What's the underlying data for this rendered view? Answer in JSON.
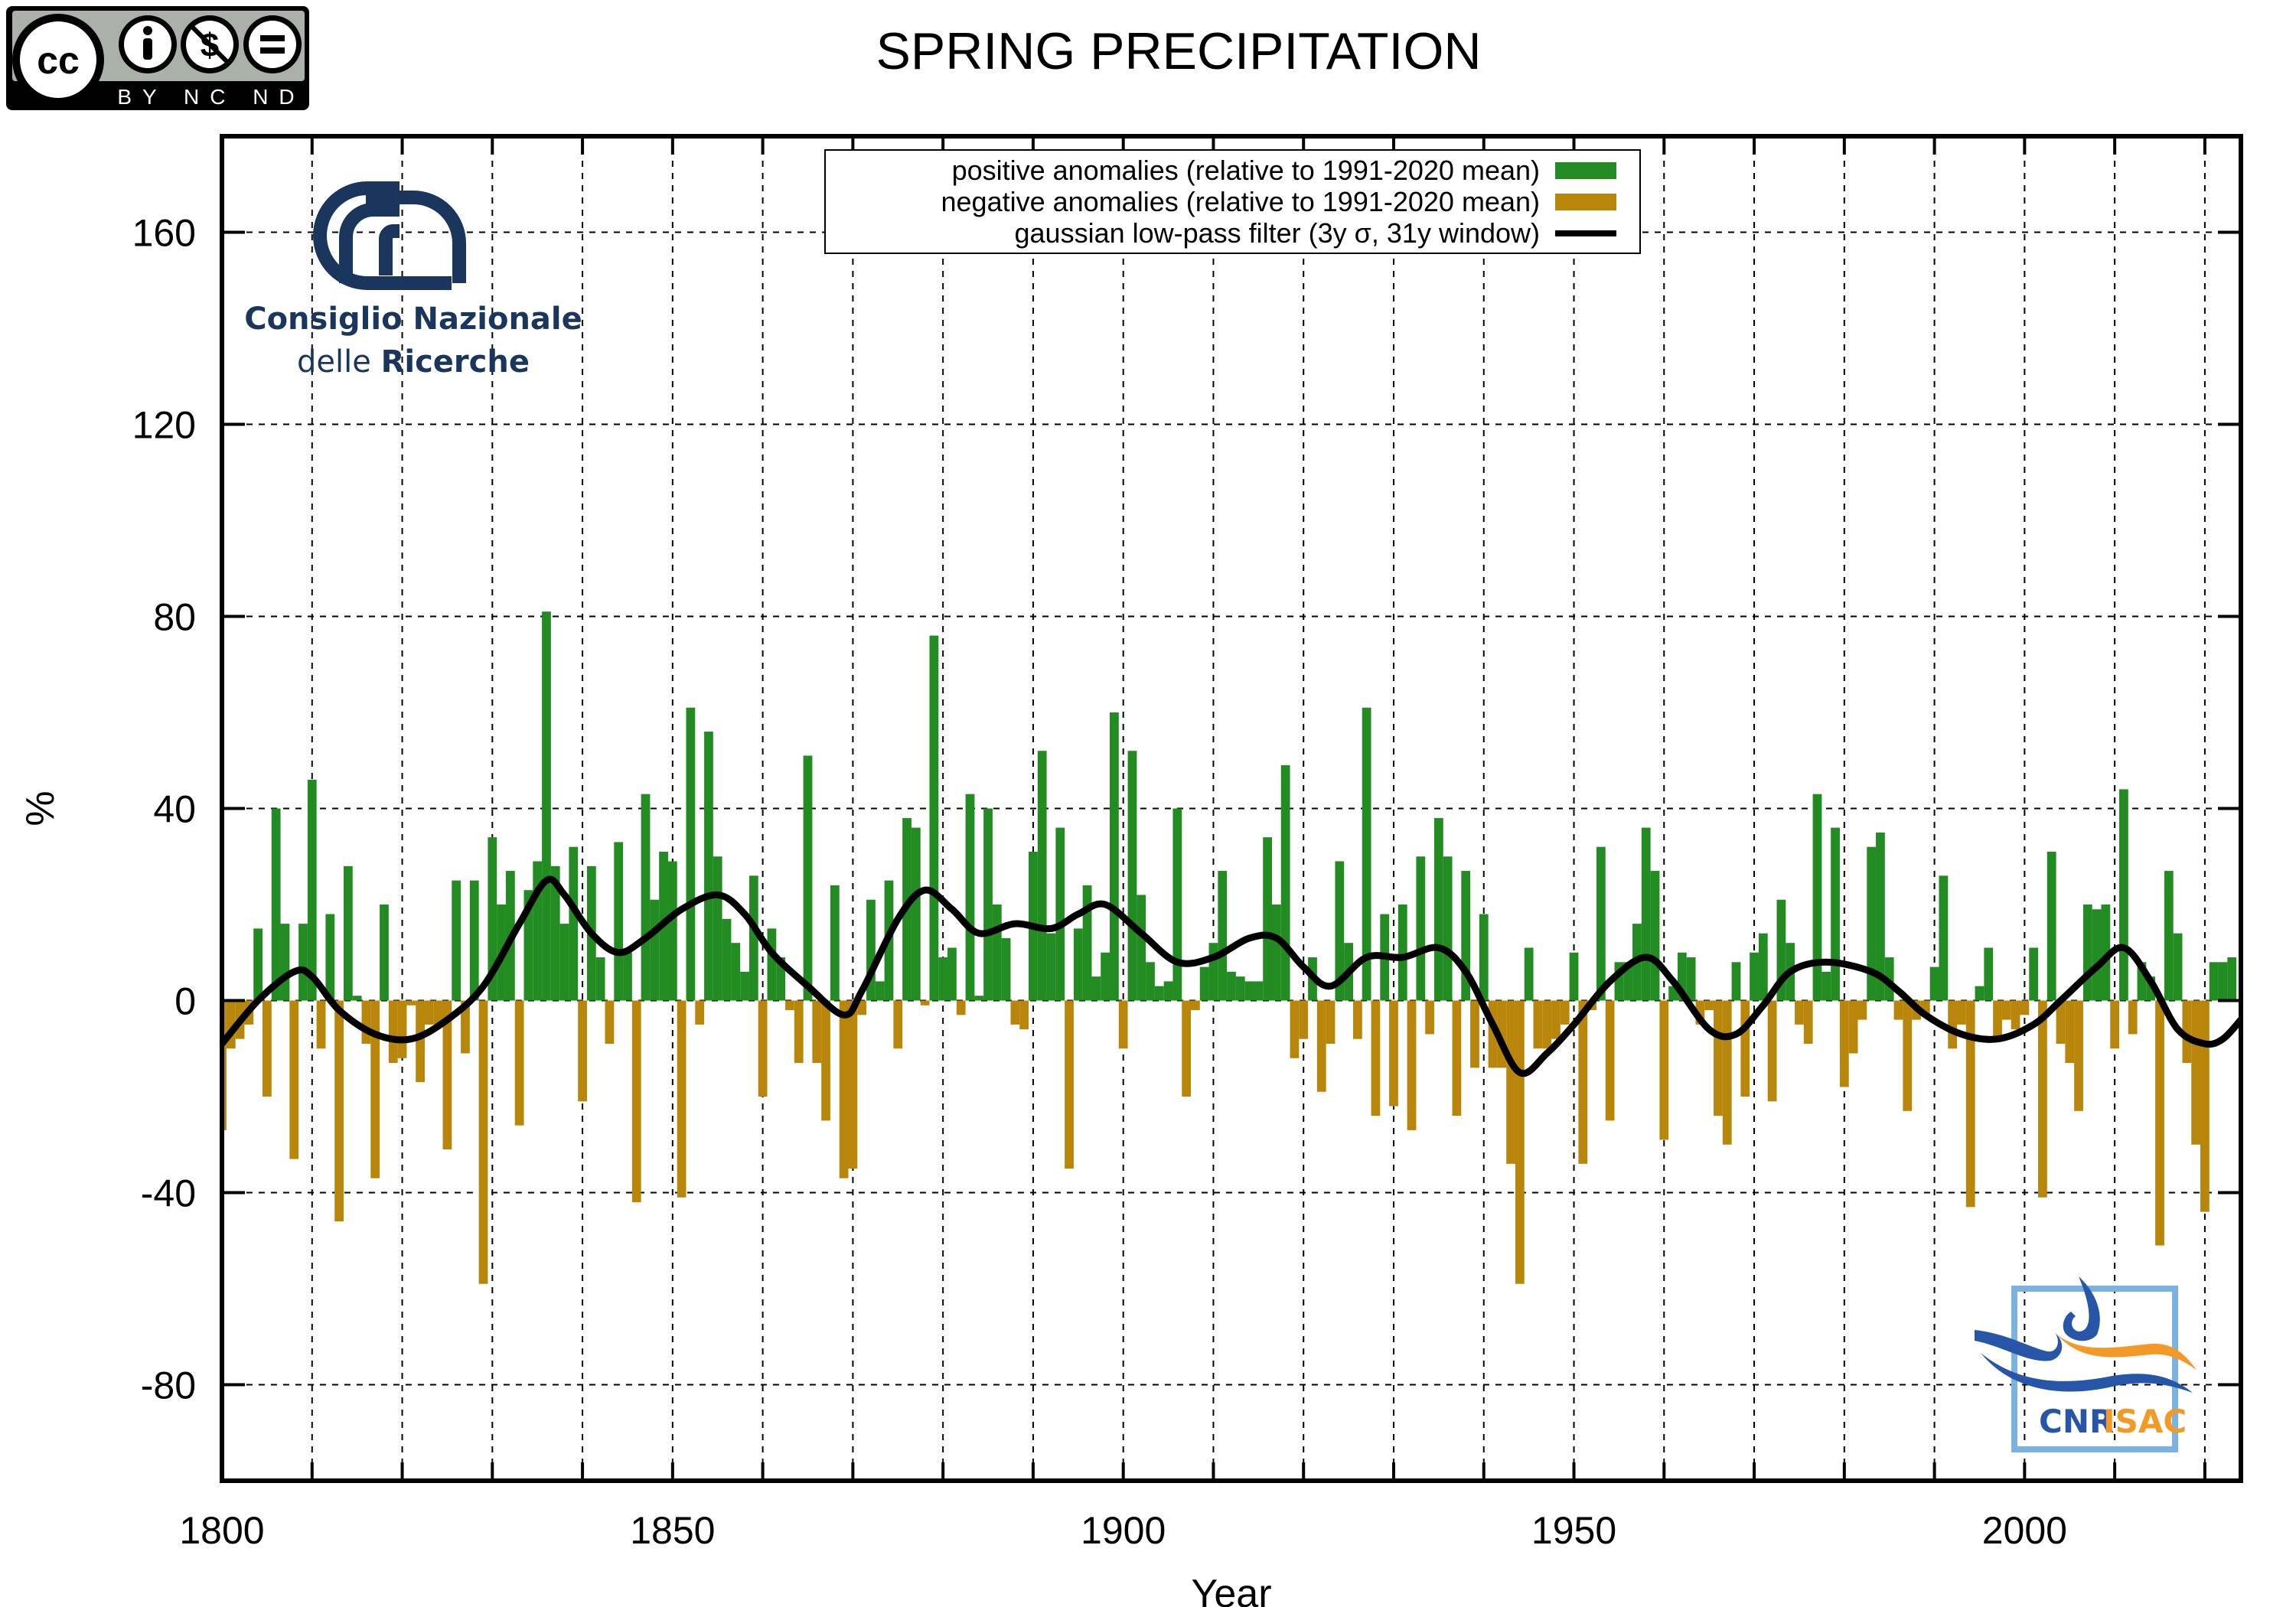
{
  "chart_data": {
    "type": "bar",
    "title": "SPRING PRECIPITATION",
    "xlabel": "Year",
    "ylabel": "%",
    "xlim": [
      1800,
      2024
    ],
    "ylim": [
      -100,
      180
    ],
    "xticks": [
      1800,
      1850,
      1900,
      1950,
      2000
    ],
    "yticks": [
      -80,
      -40,
      0,
      40,
      80,
      120,
      160
    ],
    "grid": true,
    "legend_position": "top-center",
    "legend": [
      {
        "label": "positive anomalies (relative to 1991-2020 mean)",
        "color": "#228b22"
      },
      {
        "label": "negative anomalies (relative to 1991-2020 mean)",
        "color": "#b8860b"
      },
      {
        "label": "gaussian low-pass filter (3y σ, 31y window)",
        "color": "#000000"
      }
    ],
    "start_year": 1800,
    "values": [
      -27,
      -10,
      -8,
      -5,
      15,
      -20,
      40,
      16,
      -33,
      16,
      46,
      -10,
      18,
      -46,
      28,
      1,
      -9,
      -37,
      20,
      -13,
      -12,
      -1,
      -17,
      -5,
      -5,
      -31,
      25,
      -11,
      25,
      -59,
      34,
      20,
      27,
      -26,
      23,
      29,
      81,
      28,
      16,
      32,
      -21,
      28,
      9,
      -9,
      33,
      10,
      -42,
      43,
      21,
      31,
      29,
      -41,
      61,
      -5,
      56,
      30,
      17,
      12,
      6,
      26,
      -20,
      15,
      9,
      -2,
      -13,
      51,
      -13,
      -25,
      24,
      -37,
      -35,
      -3,
      21,
      4,
      25,
      -10,
      38,
      36,
      -1,
      76,
      9,
      11,
      -3,
      43,
      1,
      40,
      20,
      13,
      -5,
      -6,
      31,
      52,
      14,
      36,
      -35,
      15,
      24,
      5,
      10,
      60,
      -10,
      52,
      22,
      8,
      3,
      4,
      40,
      -20,
      -2,
      7,
      12,
      27,
      6,
      5,
      4,
      4,
      34,
      20,
      49,
      -12,
      -8,
      9,
      -19,
      -9,
      29,
      12,
      -8,
      61,
      -24,
      18,
      -22,
      20,
      -27,
      30,
      -7,
      38,
      30,
      -24,
      27,
      -14,
      18,
      -14,
      -14,
      -34,
      -59,
      11,
      -10,
      -10,
      -8,
      -5,
      10,
      -34,
      -2,
      32,
      -25,
      8,
      8,
      16,
      36,
      27,
      -29,
      3,
      10,
      9,
      -5,
      -2,
      -24,
      -30,
      8,
      -20,
      10,
      14,
      -21,
      21,
      12,
      -5,
      -9,
      43,
      6,
      36,
      -18,
      -11,
      -4,
      32,
      35,
      9,
      -4,
      -23,
      -4,
      -3,
      7,
      26,
      -10,
      -5,
      -43,
      3,
      11,
      -8,
      -4,
      -6,
      -3,
      11,
      -41,
      31,
      -9,
      -13,
      -23,
      20,
      19,
      20,
      -10,
      44,
      -7,
      8,
      5,
      -51,
      27,
      14,
      -13,
      -30,
      -44,
      8,
      8,
      9
    ],
    "filter": {
      "x": [
        1800,
        1804,
        1808,
        1810,
        1813,
        1817,
        1821,
        1825,
        1829,
        1833,
        1836,
        1838,
        1841,
        1844,
        1847,
        1851,
        1855,
        1858,
        1861,
        1865,
        1869,
        1871,
        1875,
        1878,
        1881,
        1884,
        1888,
        1892,
        1895,
        1898,
        1902,
        1906,
        1910,
        1914,
        1917,
        1920,
        1923,
        1927,
        1931,
        1935,
        1938,
        1941,
        1944,
        1947,
        1950,
        1954,
        1958,
        1961,
        1965,
        1968,
        1971,
        1974,
        1978,
        1983,
        1986,
        1989,
        1993,
        1997,
        2001,
        2004,
        2008,
        2011,
        2014,
        2017,
        2020,
        2022,
        2024
      ],
      "y": [
        -9,
        0,
        6,
        5,
        -2,
        -7,
        -8,
        -4,
        3,
        16,
        25,
        22,
        14,
        10,
        13,
        19,
        22,
        18,
        10,
        3,
        -3,
        2,
        17,
        23,
        19,
        14,
        16,
        15,
        18,
        20,
        14,
        8,
        9,
        13,
        13,
        7,
        3,
        9,
        9,
        11,
        6,
        -5,
        -15,
        -11,
        -5,
        4,
        9,
        4,
        -6,
        -7,
        -1,
        6,
        8,
        6,
        2,
        -3,
        -7,
        -8,
        -5,
        0,
        7,
        11,
        4,
        -6,
        -9,
        -8,
        -4
      ]
    }
  },
  "badges": {
    "cc_license": "BY NC ND",
    "cnr_name_line1": "Consiglio Nazionale",
    "cnr_name_line2a": "delle ",
    "cnr_name_line2b": "Ricerche",
    "isac_left": "CNR",
    "isac_right": "ISAC"
  }
}
